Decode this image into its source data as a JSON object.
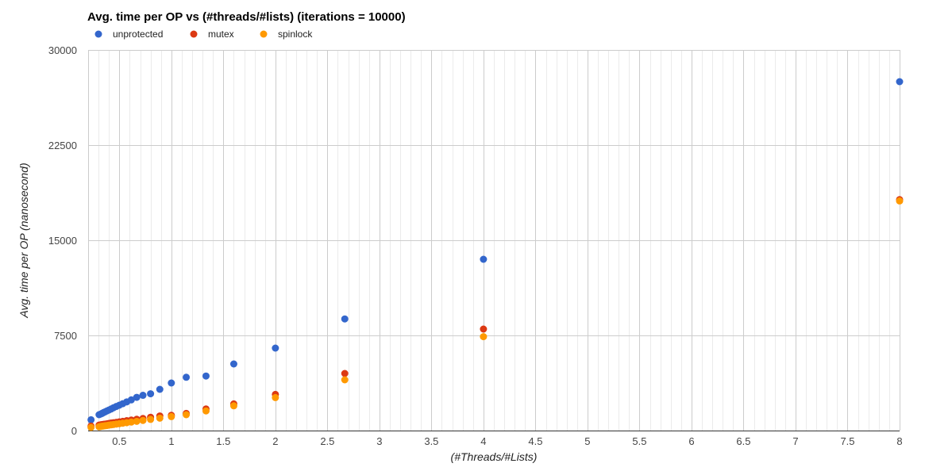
{
  "chart_data": {
    "type": "scatter",
    "title": "Avg. time per OP vs (#threads/#lists) (iterations = 10000)",
    "xlabel": "(#Threads/#Lists)",
    "ylabel": "Avg. time per OP (nanosecond)",
    "xlim": [
      0.2,
      8
    ],
    "ylim": [
      0,
      30000
    ],
    "x_ticks": [
      0.5,
      1,
      1.5,
      2,
      2.5,
      3,
      3.5,
      4,
      4.5,
      5,
      5.5,
      6,
      6.5,
      7,
      7.5,
      8
    ],
    "x_tick_labels": [
      "0.5",
      "1",
      "1.5",
      "2",
      "2.5",
      "3",
      "3.5",
      "4",
      "4.5",
      "5",
      "5.5",
      "6",
      "6.5",
      "7",
      "7.5",
      "8"
    ],
    "x_minor_step": 0.1,
    "y_ticks": [
      0,
      7500,
      15000,
      22500,
      30000
    ],
    "y_tick_labels": [
      "0",
      "7500",
      "15000",
      "22500",
      "30000"
    ],
    "grid": true,
    "legend_position": "top-left",
    "series": [
      {
        "name": "unprotected",
        "color": "#3366cc",
        "points": [
          [
            0.228,
            850
          ],
          [
            0.305,
            1250
          ],
          [
            0.32,
            1300
          ],
          [
            0.333,
            1350
          ],
          [
            0.348,
            1420
          ],
          [
            0.364,
            1480
          ],
          [
            0.381,
            1550
          ],
          [
            0.4,
            1620
          ],
          [
            0.421,
            1700
          ],
          [
            0.444,
            1800
          ],
          [
            0.471,
            1900
          ],
          [
            0.5,
            2000
          ],
          [
            0.533,
            2120
          ],
          [
            0.571,
            2260
          ],
          [
            0.615,
            2420
          ],
          [
            0.667,
            2620
          ],
          [
            0.727,
            2780
          ],
          [
            0.8,
            2900
          ],
          [
            0.889,
            3250
          ],
          [
            1.0,
            3750
          ],
          [
            1.143,
            4200
          ],
          [
            1.333,
            4300
          ],
          [
            1.6,
            5250
          ],
          [
            2.0,
            6500
          ],
          [
            2.667,
            8800
          ],
          [
            4.0,
            13500
          ],
          [
            8.0,
            27500
          ]
        ]
      },
      {
        "name": "mutex",
        "color": "#dc3912",
        "points": [
          [
            0.228,
            350
          ],
          [
            0.305,
            430
          ],
          [
            0.32,
            450
          ],
          [
            0.333,
            470
          ],
          [
            0.348,
            490
          ],
          [
            0.364,
            510
          ],
          [
            0.381,
            530
          ],
          [
            0.4,
            560
          ],
          [
            0.421,
            590
          ],
          [
            0.444,
            620
          ],
          [
            0.471,
            650
          ],
          [
            0.5,
            690
          ],
          [
            0.533,
            730
          ],
          [
            0.571,
            780
          ],
          [
            0.615,
            830
          ],
          [
            0.667,
            890
          ],
          [
            0.727,
            950
          ],
          [
            0.8,
            1050
          ],
          [
            0.889,
            1150
          ],
          [
            1.0,
            1200
          ],
          [
            1.143,
            1350
          ],
          [
            1.333,
            1700
          ],
          [
            1.6,
            2100
          ],
          [
            2.0,
            2850
          ],
          [
            2.667,
            4500
          ],
          [
            4.0,
            8000
          ],
          [
            8.0,
            18200
          ]
        ]
      },
      {
        "name": "spinlock",
        "color": "#ff9900",
        "points": [
          [
            0.228,
            250
          ],
          [
            0.305,
            300
          ],
          [
            0.32,
            320
          ],
          [
            0.333,
            340
          ],
          [
            0.348,
            360
          ],
          [
            0.364,
            380
          ],
          [
            0.381,
            400
          ],
          [
            0.4,
            430
          ],
          [
            0.421,
            450
          ],
          [
            0.444,
            480
          ],
          [
            0.471,
            510
          ],
          [
            0.5,
            540
          ],
          [
            0.533,
            580
          ],
          [
            0.571,
            620
          ],
          [
            0.615,
            670
          ],
          [
            0.667,
            730
          ],
          [
            0.727,
            800
          ],
          [
            0.8,
            880
          ],
          [
            0.889,
            980
          ],
          [
            1.0,
            1100
          ],
          [
            1.143,
            1250
          ],
          [
            1.333,
            1550
          ],
          [
            1.6,
            1950
          ],
          [
            2.0,
            2600
          ],
          [
            2.667,
            4000
          ],
          [
            4.0,
            7400
          ],
          [
            8.0,
            18100
          ]
        ]
      }
    ]
  }
}
